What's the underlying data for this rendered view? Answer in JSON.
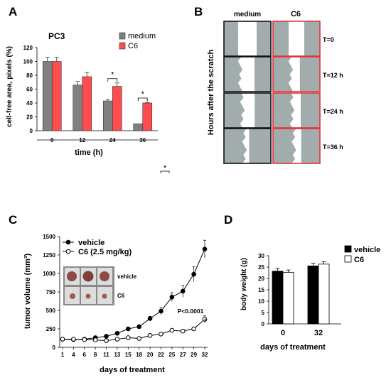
{
  "panels": {
    "A": "A",
    "B": "B",
    "C": "C",
    "D": "D"
  },
  "colors": {
    "medium": "#808080",
    "c6": "#ff4d4d",
    "red_border": "#e8303a",
    "scratch_bg": "#9aa5a6"
  },
  "standalone_star": "*",
  "panel_b": {
    "col_medium": "medium",
    "col_c6": "C6",
    "ylabel": "Hours after the scratch",
    "rows": [
      "T=0",
      "T=12 h",
      "T=24 h",
      "T=36 h"
    ]
  },
  "panel_c": {
    "inset_vehicle": "vehicle",
    "inset_c6": "C6",
    "pvalue": "P<0.0001",
    "star": "*"
  },
  "chart_data": [
    {
      "id": "A",
      "type": "bar",
      "title": "PC3",
      "xlabel": "time (h)",
      "ylabel": "cell-free area, pixels (%)",
      "categories": [
        "0",
        "12",
        "24",
        "36"
      ],
      "series": [
        {
          "name": "medium",
          "values": [
            100,
            66,
            43,
            10
          ],
          "errors": [
            6,
            5,
            2,
            0
          ]
        },
        {
          "name": "C6",
          "values": [
            100,
            78,
            64,
            40
          ],
          "errors": [
            6,
            6,
            5,
            1
          ]
        }
      ],
      "ylim": [
        0,
        120
      ],
      "yticks": [
        "0",
        "20",
        "40",
        "60",
        "80",
        "100",
        "120"
      ],
      "significance": [
        "*",
        "*"
      ],
      "legend": "top-right"
    },
    {
      "id": "C",
      "type": "line",
      "xlabel": "days of treatment",
      "ylabel": "tumor volume (mm³)",
      "x": [
        1,
        4,
        6,
        8,
        11,
        13,
        15,
        18,
        20,
        22,
        25,
        27,
        29,
        32
      ],
      "xticks": [
        "1",
        "4",
        "6",
        "8",
        "11",
        "13",
        "15",
        "18",
        "20",
        "22",
        "25",
        "27",
        "29",
        "32"
      ],
      "series": [
        {
          "name": "vehicle",
          "marker": "filled",
          "values": [
            110,
            105,
            110,
            130,
            150,
            190,
            250,
            280,
            390,
            490,
            680,
            760,
            990,
            1330
          ],
          "errors": [
            20,
            15,
            15,
            15,
            20,
            20,
            20,
            20,
            30,
            50,
            60,
            80,
            100,
            120
          ]
        },
        {
          "name": "C6 (2.5 mg/kg)",
          "marker": "open",
          "values": [
            110,
            110,
            105,
            100,
            90,
            110,
            130,
            120,
            160,
            180,
            230,
            220,
            250,
            380
          ],
          "errors": [
            15,
            10,
            10,
            10,
            10,
            15,
            15,
            10,
            15,
            20,
            20,
            20,
            25,
            45
          ]
        }
      ],
      "ylim": [
        0,
        1500
      ],
      "yticks": [
        "0",
        "250",
        "500",
        "750",
        "1000",
        "1250",
        "1500"
      ],
      "legend": "top-left"
    },
    {
      "id": "D",
      "type": "bar",
      "xlabel": "days of treatment",
      "ylabel": "body weight (g)",
      "categories": [
        "0",
        "32"
      ],
      "series": [
        {
          "name": "vehicle",
          "values": [
            23.2,
            25.5
          ],
          "errors": [
            1.2,
            1.2
          ]
        },
        {
          "name": "C6",
          "values": [
            22.7,
            26.3
          ],
          "errors": [
            1.0,
            1.0
          ]
        }
      ],
      "ylim": [
        0,
        30
      ],
      "yticks": [
        "0",
        "5",
        "10",
        "15",
        "20",
        "25",
        "30"
      ],
      "legend": "top-right"
    }
  ]
}
